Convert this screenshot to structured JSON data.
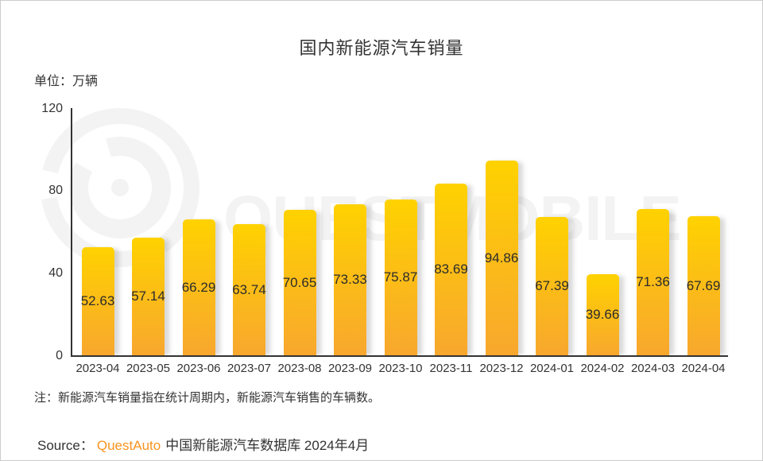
{
  "header": {
    "title": "国内新能源汽车销量",
    "unit_label": "单位：万辆"
  },
  "footer": {
    "note": "注：新能源汽车销量指在统计周期内，新能源汽车销售的车辆数。",
    "source_prefix": "Source：",
    "source_brand": "QuestAuto",
    "source_rest": "中国新能源汽车数据库 2024年4月"
  },
  "watermark": {
    "text": "QUESTMOBILE"
  },
  "colors": {
    "bar_top": "#FFD200",
    "bar_bottom": "#F8A72E",
    "axis": "#333333",
    "text": "#333333",
    "brand_orange": "#F7941E",
    "watermark_gray": "#F3F3F3"
  },
  "chart_data": {
    "type": "bar",
    "title": "国内新能源汽车销量",
    "unit": "万辆",
    "categories": [
      "2023-04",
      "2023-05",
      "2023-06",
      "2023-07",
      "2023-08",
      "2023-09",
      "2023-10",
      "2023-11",
      "2023-12",
      "2024-01",
      "2024-02",
      "2024-03",
      "2024-04"
    ],
    "values": [
      52.63,
      57.14,
      66.29,
      63.74,
      70.65,
      73.33,
      75.87,
      83.69,
      94.86,
      67.39,
      39.66,
      71.36,
      67.69
    ],
    "xlabel": "",
    "ylabel": "万辆",
    "ylim": [
      0,
      120
    ],
    "yticks": [
      0,
      40,
      80,
      120
    ],
    "grid": false,
    "legend": false,
    "value_label_position": "inside-middle"
  }
}
